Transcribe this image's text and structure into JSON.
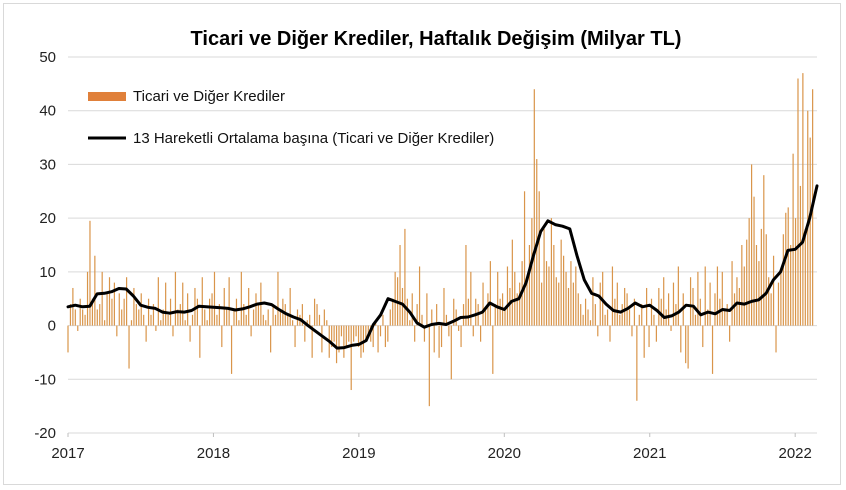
{
  "chart_data": {
    "type": "bar",
    "title": "Ticari ve Diğer Krediler, Haftalık Değişim (Milyar TL)",
    "ylim": [
      -20,
      50
    ],
    "yticks": [
      "50",
      "40",
      "30",
      "20",
      "10",
      "0",
      "-10",
      "-20"
    ],
    "yticks_values": [
      50,
      40,
      30,
      20,
      10,
      0,
      -10,
      -20
    ],
    "xticks": [
      "2017",
      "2018",
      "2019",
      "2020",
      "2021",
      "2022"
    ],
    "x_range_years": [
      2017.0,
      2022.15
    ],
    "grid": "horizontal",
    "legend_placement": "top-left",
    "colors": {
      "bars": "#d9954a",
      "legend_bar": "#e0803a",
      "line": "#000000",
      "grid": "#d9d9d9"
    },
    "series": [
      {
        "name": "Ticari ve Diğer Krediler",
        "kind": "bar",
        "x_start": "2017-01-06",
        "x_step": "1 week",
        "values": [
          -5,
          4,
          7,
          3,
          -1,
          5,
          3,
          2,
          10,
          19.5,
          5,
          13,
          3,
          4,
          10,
          1,
          6,
          9,
          5,
          8,
          -2,
          6,
          3,
          5,
          9,
          -8,
          1,
          7,
          4,
          3,
          6,
          2,
          -3,
          5,
          2,
          4,
          -1,
          9,
          1,
          3,
          8,
          2,
          5,
          -2,
          10,
          3,
          4,
          8,
          1,
          6,
          -3,
          2,
          7,
          5,
          -6,
          9,
          3,
          1,
          5,
          6,
          10,
          2,
          4,
          -4,
          7,
          3,
          9,
          -9,
          3,
          5,
          1,
          10,
          4,
          2,
          7,
          -2,
          3,
          6,
          4,
          8,
          2,
          1,
          3,
          -5,
          4,
          2,
          10,
          3,
          5,
          4,
          2,
          7,
          1,
          -4,
          3,
          2,
          4,
          -3,
          1,
          2,
          -6,
          5,
          4,
          2,
          -5,
          3,
          1,
          -6,
          -4,
          -3,
          -7,
          -5,
          -2,
          -6,
          -4,
          -3,
          -12,
          -3,
          -2,
          -4,
          -6,
          -5,
          -3,
          -2,
          -3,
          -4,
          1,
          -5,
          -2,
          2,
          -4,
          -3,
          3,
          5,
          10,
          9,
          15,
          7,
          18,
          5,
          1,
          6,
          -3,
          4,
          11,
          2,
          -3,
          6,
          -15,
          3,
          -5,
          4,
          -6,
          -4,
          7,
          2,
          -2,
          -10,
          5,
          3,
          -1,
          -4,
          4,
          15,
          5,
          10,
          -2,
          5,
          4,
          -3,
          8,
          3,
          6,
          12,
          -9,
          4,
          10,
          5,
          6,
          3,
          11,
          7,
          16,
          10,
          6,
          8,
          12,
          25,
          9,
          15,
          20,
          44,
          31,
          25,
          8,
          18,
          12,
          11,
          20,
          15,
          9,
          8,
          16,
          13,
          10,
          7,
          12,
          8,
          11,
          6,
          4,
          2,
          5,
          3,
          1,
          9,
          4,
          -2,
          8,
          10,
          2,
          3,
          -3,
          11,
          5,
          8,
          2,
          4,
          7,
          6,
          3,
          -2,
          5,
          -14,
          2,
          4,
          -6,
          7,
          -4,
          5,
          2,
          -3,
          7,
          5,
          9,
          3,
          6,
          -1,
          8,
          4,
          11,
          -5,
          6,
          -7,
          -8,
          9,
          7,
          2,
          10,
          5,
          -4,
          11,
          3,
          8,
          -9,
          6,
          11,
          5,
          10,
          3,
          4,
          -3,
          12,
          6,
          9,
          7,
          15,
          11,
          16,
          20,
          30,
          24,
          15,
          12,
          18,
          28,
          17,
          9,
          6,
          13,
          -5,
          8,
          10,
          17,
          21,
          22,
          15,
          32,
          20,
          46,
          26,
          47,
          18,
          40,
          35,
          44
        ]
      },
      {
        "name": "13 Hareketli Ortalama başına (Ticari ve Diğer Krediler)",
        "kind": "line",
        "points": [
          [
            2017.0,
            3.5
          ],
          [
            2017.05,
            3.8
          ],
          [
            2017.1,
            3.5
          ],
          [
            2017.15,
            3.6
          ],
          [
            2017.2,
            5.9
          ],
          [
            2017.25,
            6.0
          ],
          [
            2017.3,
            6.3
          ],
          [
            2017.35,
            6.9
          ],
          [
            2017.4,
            6.8
          ],
          [
            2017.45,
            5.5
          ],
          [
            2017.5,
            3.8
          ],
          [
            2017.55,
            3.4
          ],
          [
            2017.6,
            3.2
          ],
          [
            2017.65,
            2.5
          ],
          [
            2017.7,
            2.3
          ],
          [
            2017.75,
            2.6
          ],
          [
            2017.8,
            2.5
          ],
          [
            2017.85,
            2.8
          ],
          [
            2017.9,
            3.6
          ],
          [
            2017.95,
            3.5
          ],
          [
            2018.0,
            3.4
          ],
          [
            2018.05,
            3.3
          ],
          [
            2018.1,
            3.2
          ],
          [
            2018.15,
            2.9
          ],
          [
            2018.2,
            3.1
          ],
          [
            2018.25,
            3.5
          ],
          [
            2018.3,
            4.0
          ],
          [
            2018.35,
            4.2
          ],
          [
            2018.4,
            3.9
          ],
          [
            2018.45,
            3.0
          ],
          [
            2018.5,
            2.2
          ],
          [
            2018.55,
            1.6
          ],
          [
            2018.6,
            1.1
          ],
          [
            2018.65,
            0.0
          ],
          [
            2018.7,
            -1.0
          ],
          [
            2018.75,
            -2.0
          ],
          [
            2018.8,
            -3.0
          ],
          [
            2018.85,
            -4.2
          ],
          [
            2018.9,
            -4.1
          ],
          [
            2018.95,
            -3.7
          ],
          [
            2019.0,
            -3.5
          ],
          [
            2019.05,
            -2.8
          ],
          [
            2019.1,
            0.2
          ],
          [
            2019.15,
            2.0
          ],
          [
            2019.2,
            5.0
          ],
          [
            2019.25,
            4.5
          ],
          [
            2019.3,
            4.0
          ],
          [
            2019.35,
            2.5
          ],
          [
            2019.4,
            0.5
          ],
          [
            2019.45,
            -0.3
          ],
          [
            2019.5,
            0.2
          ],
          [
            2019.55,
            0.4
          ],
          [
            2019.6,
            0.2
          ],
          [
            2019.65,
            0.8
          ],
          [
            2019.7,
            1.5
          ],
          [
            2019.75,
            1.6
          ],
          [
            2019.8,
            2.0
          ],
          [
            2019.85,
            2.5
          ],
          [
            2019.9,
            4.2
          ],
          [
            2019.95,
            3.5
          ],
          [
            2020.0,
            3.0
          ],
          [
            2020.05,
            4.5
          ],
          [
            2020.1,
            5.0
          ],
          [
            2020.15,
            8.0
          ],
          [
            2020.2,
            13.0
          ],
          [
            2020.25,
            17.5
          ],
          [
            2020.3,
            19.5
          ],
          [
            2020.35,
            18.8
          ],
          [
            2020.4,
            18.5
          ],
          [
            2020.45,
            18.0
          ],
          [
            2020.5,
            13.0
          ],
          [
            2020.55,
            8.5
          ],
          [
            2020.6,
            6.0
          ],
          [
            2020.65,
            5.5
          ],
          [
            2020.7,
            4.0
          ],
          [
            2020.75,
            2.8
          ],
          [
            2020.8,
            2.5
          ],
          [
            2020.85,
            3.2
          ],
          [
            2020.9,
            4.2
          ],
          [
            2020.95,
            3.5
          ],
          [
            2021.0,
            3.8
          ],
          [
            2021.05,
            2.8
          ],
          [
            2021.1,
            1.5
          ],
          [
            2021.15,
            1.8
          ],
          [
            2021.2,
            2.5
          ],
          [
            2021.25,
            3.8
          ],
          [
            2021.3,
            3.6
          ],
          [
            2021.35,
            2.0
          ],
          [
            2021.4,
            2.5
          ],
          [
            2021.45,
            2.2
          ],
          [
            2021.5,
            3.0
          ],
          [
            2021.55,
            2.8
          ],
          [
            2021.6,
            4.2
          ],
          [
            2021.65,
            4.0
          ],
          [
            2021.7,
            4.5
          ],
          [
            2021.75,
            4.8
          ],
          [
            2021.8,
            6.0
          ],
          [
            2021.85,
            8.5
          ],
          [
            2021.9,
            10.0
          ],
          [
            2021.95,
            14.0
          ],
          [
            2022.0,
            14.2
          ],
          [
            2022.05,
            15.5
          ],
          [
            2022.1,
            20.0
          ],
          [
            2022.15,
            26.0
          ]
        ]
      }
    ]
  }
}
